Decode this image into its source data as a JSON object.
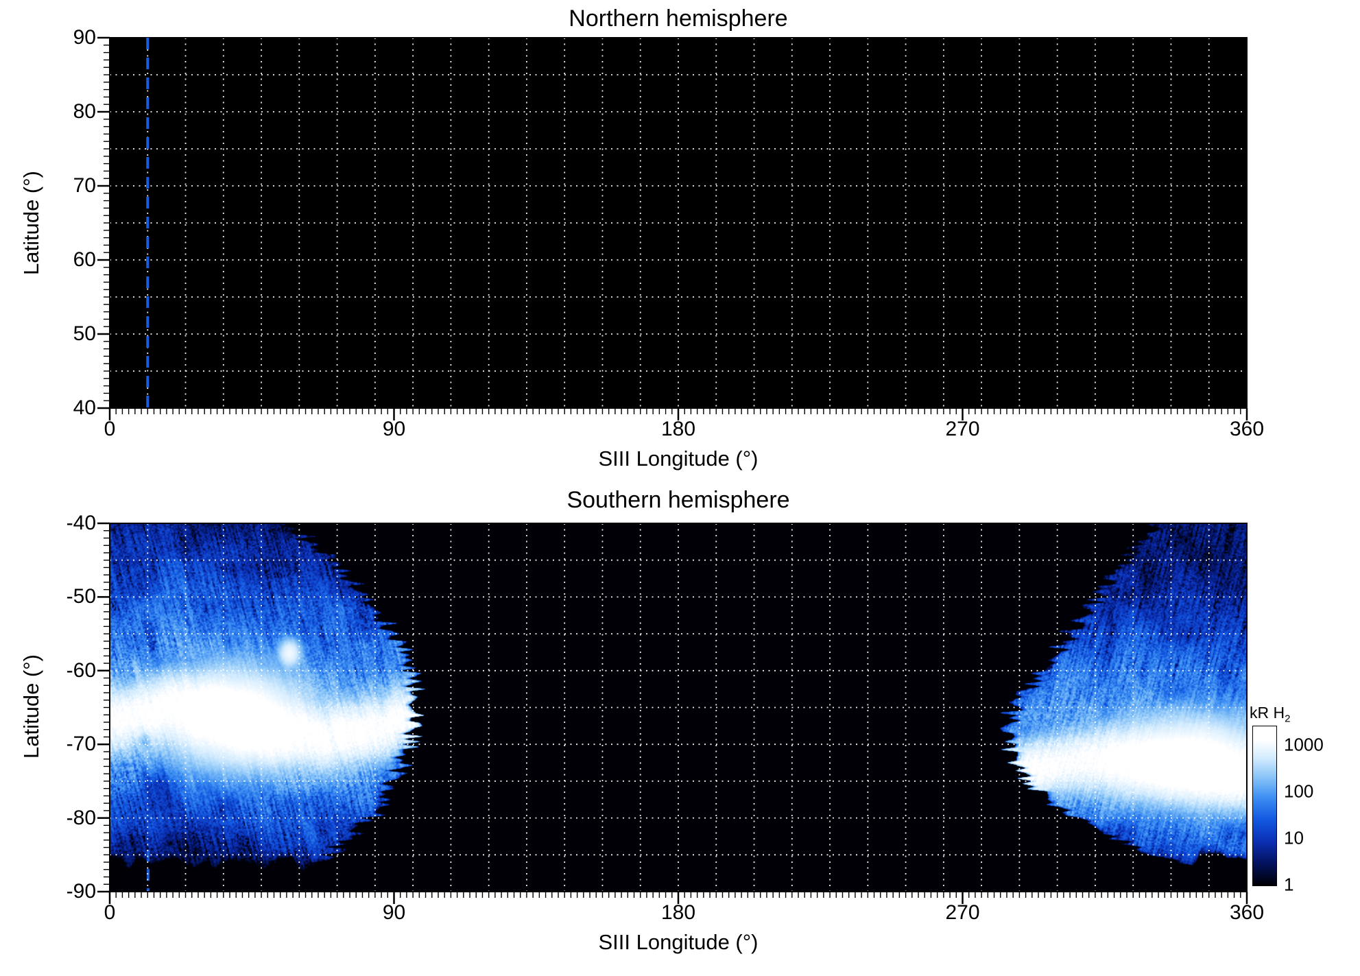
{
  "panels": [
    {
      "title": "Northern hemisphere",
      "xlabel": "SIII Longitude (°)",
      "ylabel": "Latitude (°)",
      "x_tick_labels": [
        "0",
        "90",
        "180",
        "270",
        "360"
      ],
      "y_tick_labels": [
        "90",
        "80",
        "70",
        "60",
        "50",
        "40"
      ]
    },
    {
      "title": "Southern hemisphere",
      "xlabel": "SIII Longitude (°)",
      "ylabel": "Latitude (°)",
      "x_tick_labels": [
        "0",
        "90",
        "180",
        "270",
        "360"
      ],
      "y_tick_labels": [
        "-40",
        "-50",
        "-60",
        "-70",
        "-80",
        "-90"
      ]
    }
  ],
  "colorbar": {
    "title": "kR H",
    "title_sub": "2",
    "tick_labels": [
      "1000",
      "100",
      "10",
      "1"
    ]
  },
  "colors": {
    "plot_background": "#000000",
    "grid": "#ffffff",
    "marker_line": "#1c5ddd",
    "colormap_stops": [
      [
        0.0,
        "#000006"
      ],
      [
        0.15,
        "#03125e"
      ],
      [
        0.3,
        "#0b2fb4"
      ],
      [
        0.45,
        "#1258e0"
      ],
      [
        0.6,
        "#3b8df2"
      ],
      [
        0.75,
        "#8cc6f8"
      ],
      [
        0.88,
        "#d4ecfe"
      ],
      [
        1.0,
        "#ffffff"
      ]
    ]
  },
  "chart_data": [
    {
      "type": "heatmap",
      "title": "Northern hemisphere",
      "xlabel": "SIII Longitude (°)",
      "ylabel": "Latitude (°)",
      "xlim": [
        0,
        360
      ],
      "ylim": [
        40,
        90
      ],
      "x_ticks": [
        0,
        90,
        180,
        270,
        360
      ],
      "y_ticks": [
        90,
        80,
        70,
        60,
        50,
        40
      ],
      "grid": true,
      "grid_style": "white dotted, ~12° longitude x 5° latitude cells",
      "marker_longitude_deg": 12,
      "emission": "none - panel entirely black (no auroral emission observed)"
    },
    {
      "type": "heatmap",
      "title": "Southern hemisphere",
      "xlabel": "SIII Longitude (°)",
      "ylabel": "Latitude (°)",
      "xlim": [
        0,
        360
      ],
      "ylim": [
        -90,
        -40
      ],
      "x_ticks": [
        0,
        90,
        180,
        270,
        360
      ],
      "y_ticks": [
        -40,
        -50,
        -60,
        -70,
        -80,
        -90
      ],
      "grid": true,
      "marker_longitude_deg": 12,
      "colorbar": {
        "label": "kR H2",
        "scale": "log",
        "range_kR": [
          1,
          1000
        ]
      },
      "emission_regions": [
        {
          "name": "left-observation-swath",
          "lon_range_deg": [
            0,
            97
          ],
          "lat_range_deg": [
            -86.5,
            -40
          ],
          "main_oval_lat_deg": -67,
          "oval_halfwidth_deg": 3.2,
          "peak_kR": 1400,
          "bright_patch": {
            "lon": 40,
            "lat": -66.5,
            "lon_sigma": 17,
            "lat_sigma": 4.8,
            "kR": 1600
          },
          "secondary_spot": {
            "lon": 57,
            "lat": -57.6,
            "lon_sigma": 2.6,
            "lat_sigma": 1.4,
            "kR": 900
          },
          "dark_voids": [
            {
              "lon": 15,
              "lat": -75.5,
              "lon_sigma": 5.0,
              "lat_sigma": 2.8,
              "depth": 0.75
            },
            {
              "lon": 11,
              "lat": -69.5,
              "lon_sigma": 2.5,
              "lat_sigma": 1.2,
              "depth": 0.6
            }
          ],
          "boundary": {
            "vertex_lon": 97,
            "vertex_lat": -65,
            "curvature": 0.065
          }
        },
        {
          "name": "right-observation-swath",
          "lon_range_deg": [
            283,
            360
          ],
          "lat_range_deg": [
            -86,
            -40
          ],
          "main_oval_lat_deg": -73.5,
          "oval_halfwidth_deg": 3.0,
          "peak_kR": 1300,
          "bright_patch": {
            "lon": 342,
            "lat": -72,
            "lon_sigma": 20,
            "lat_sigma": 4.2,
            "kR": 1500
          },
          "boundary": {
            "vertex_lon": 284,
            "vertex_lat": -69,
            "curvature": 0.18,
            "upper_edge": [
              [
                330,
                -40
              ],
              [
                284,
                -66
              ]
            ]
          }
        }
      ]
    }
  ]
}
